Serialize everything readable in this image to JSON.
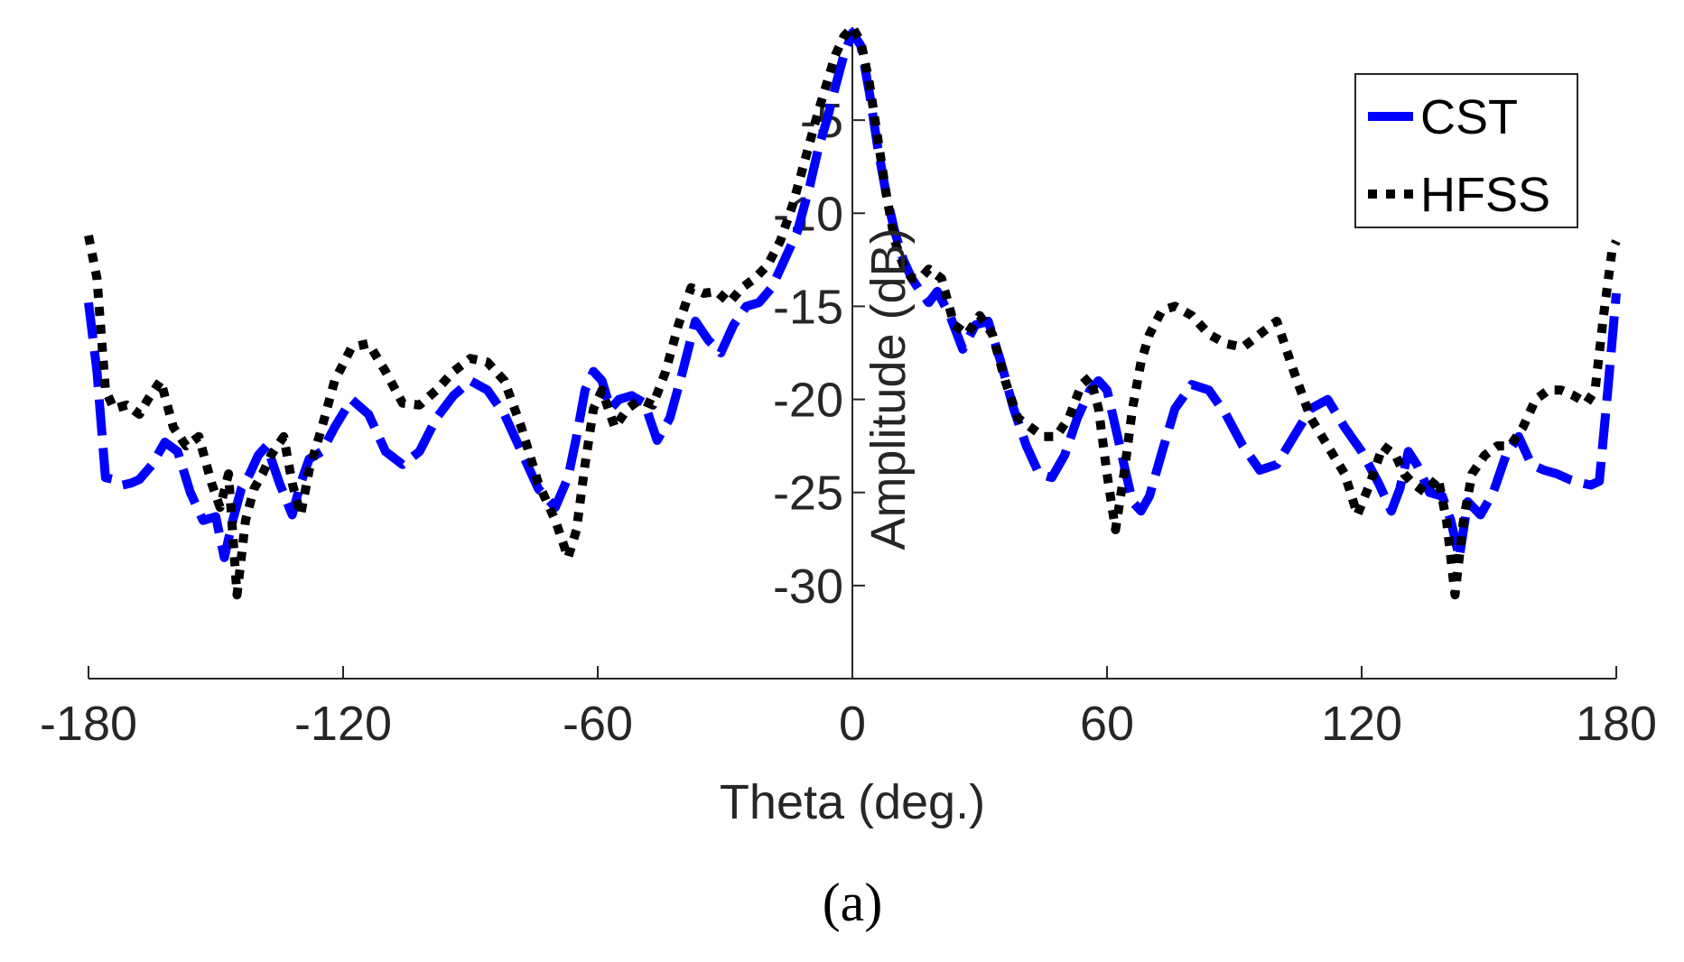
{
  "chart_data": {
    "type": "line",
    "title": "",
    "xlabel": "Theta (deg.)",
    "ylabel": "Amplitude (dB)",
    "xlim": [
      -180,
      180
    ],
    "ylim": [
      -35,
      0
    ],
    "xticks": [
      -180,
      -120,
      -60,
      0,
      60,
      120,
      180
    ],
    "yticks": [
      -30,
      -25,
      -20,
      -15,
      -10,
      -5
    ],
    "xtick_labels": [
      "-180",
      "-120",
      "-60",
      "0",
      "60",
      "120",
      "180"
    ],
    "ytick_labels": [
      "-30",
      "-25",
      "-20",
      "-15",
      "-10",
      "-5"
    ],
    "grid": false,
    "legend_position": "top-right",
    "panel_label": "(a)",
    "series": [
      {
        "name": "CST",
        "color": "#0000ff",
        "style": "dashed",
        "x": [
          -180,
          -178,
          -176,
          -174,
          -172,
          -170,
          -168,
          -165,
          -162,
          -159,
          -156,
          -153,
          -150,
          -148,
          -146,
          -144,
          -142,
          -140,
          -138,
          -135,
          -132,
          -130,
          -128,
          -125,
          -122,
          -118,
          -114,
          -110,
          -106,
          -102,
          -98,
          -94,
          -90,
          -86,
          -82,
          -78,
          -74,
          -70,
          -67,
          -65,
          -63,
          -61,
          -59,
          -57,
          -55,
          -52,
          -49,
          -46,
          -43,
          -40,
          -37,
          -34,
          -31,
          -28,
          -25,
          -22,
          -19,
          -16,
          -13,
          -10,
          -8,
          -6,
          -4,
          -2,
          0,
          2,
          4,
          6,
          8,
          10,
          12,
          14,
          16,
          18,
          20,
          23,
          26,
          29,
          32,
          35,
          38,
          41,
          44,
          47,
          50,
          53,
          56,
          58,
          60,
          62,
          64,
          66,
          68,
          70,
          73,
          76,
          80,
          84,
          88,
          92,
          96,
          100,
          104,
          108,
          112,
          116,
          120,
          124,
          127,
          129,
          131,
          133,
          136,
          139,
          141,
          143,
          145,
          148,
          151,
          154,
          157,
          160,
          163,
          166,
          169,
          172,
          174,
          176,
          178,
          180
        ],
        "y": [
          -14.8,
          -18.5,
          -24.2,
          -24.3,
          -24.6,
          -24.5,
          -24.3,
          -23.5,
          -22.3,
          -22.8,
          -25.0,
          -26.5,
          -26.3,
          -28.5,
          -26.5,
          -24.8,
          -24.0,
          -23.0,
          -22.5,
          -24.5,
          -26.2,
          -24.5,
          -23.2,
          -22.8,
          -21.5,
          -20.0,
          -20.8,
          -22.8,
          -23.5,
          -22.8,
          -21.0,
          -19.8,
          -19.0,
          -19.5,
          -20.8,
          -22.8,
          -24.8,
          -25.8,
          -24.2,
          -22.0,
          -19.5,
          -18.5,
          -19.0,
          -20.5,
          -20.0,
          -19.8,
          -20.2,
          -22.2,
          -21.0,
          -18.5,
          -15.8,
          -16.8,
          -17.5,
          -16.0,
          -15.0,
          -14.8,
          -14.0,
          -12.5,
          -11.0,
          -8.5,
          -6.5,
          -5.0,
          -3.2,
          -1.5,
          -0.3,
          -1.0,
          -3.5,
          -6.5,
          -9.0,
          -11.0,
          -12.5,
          -13.5,
          -14.2,
          -14.8,
          -14.2,
          -15.5,
          -17.3,
          -16.0,
          -15.8,
          -18.0,
          -20.5,
          -22.5,
          -24.0,
          -24.2,
          -23.0,
          -21.0,
          -19.5,
          -19.0,
          -19.5,
          -21.5,
          -23.5,
          -25.5,
          -26.0,
          -25.2,
          -22.8,
          -20.5,
          -19.2,
          -19.5,
          -20.8,
          -22.5,
          -23.8,
          -23.5,
          -22.0,
          -20.5,
          -20.0,
          -21.5,
          -22.8,
          -24.5,
          -26.0,
          -24.8,
          -22.8,
          -23.5,
          -25.0,
          -25.2,
          -26.5,
          -28.5,
          -25.5,
          -26.2,
          -25.0,
          -23.0,
          -22.0,
          -23.5,
          -23.8,
          -24.0,
          -24.3,
          -24.5,
          -24.6,
          -24.4,
          -19.5,
          -14.3
        ]
      },
      {
        "name": "HFSS",
        "color": "#000000",
        "style": "dotted",
        "x": [
          -180,
          -178,
          -176,
          -174,
          -171,
          -168,
          -166,
          -163,
          -160,
          -157,
          -154,
          -151,
          -149,
          -147,
          -145,
          -143,
          -141,
          -139,
          -137,
          -134,
          -132,
          -130,
          -128,
          -125,
          -122,
          -118,
          -114,
          -110,
          -106,
          -102,
          -98,
          -94,
          -90,
          -86,
          -82,
          -78,
          -74,
          -70,
          -67,
          -65,
          -63,
          -61,
          -59,
          -56,
          -53,
          -50,
          -47,
          -44,
          -41,
          -38,
          -35,
          -32,
          -29,
          -26,
          -23,
          -20,
          -17,
          -14,
          -11,
          -8,
          -6,
          -4,
          -2,
          0,
          2,
          4,
          6,
          8,
          10,
          12,
          14,
          16,
          18,
          21,
          24,
          27,
          30,
          33,
          36,
          39,
          42,
          45,
          48,
          51,
          54,
          56,
          58,
          60,
          62,
          64,
          66,
          68,
          70,
          73,
          76,
          80,
          84,
          88,
          92,
          96,
          100,
          104,
          108,
          112,
          116,
          119,
          122,
          125,
          128,
          130,
          132,
          135,
          138,
          140,
          142,
          144,
          146,
          149,
          152,
          155,
          158,
          161,
          164,
          167,
          170,
          173,
          175,
          177,
          179,
          180
        ],
        "y": [
          -11.2,
          -13.5,
          -19.5,
          -20.5,
          -20.3,
          -20.8,
          -20.0,
          -19.0,
          -21.5,
          -22.5,
          -22.0,
          -24.5,
          -25.8,
          -24.0,
          -30.5,
          -26.5,
          -24.8,
          -24.0,
          -23.0,
          -22.0,
          -24.5,
          -26.2,
          -23.8,
          -21.5,
          -19.0,
          -17.2,
          -17.0,
          -18.5,
          -20.2,
          -20.3,
          -19.5,
          -18.5,
          -17.8,
          -18.0,
          -19.0,
          -21.5,
          -24.5,
          -26.5,
          -28.5,
          -27.0,
          -23.5,
          -20.5,
          -19.5,
          -21.5,
          -20.5,
          -20.0,
          -20.3,
          -18.5,
          -16.0,
          -14.0,
          -14.3,
          -14.2,
          -14.8,
          -14.0,
          -13.5,
          -12.8,
          -11.5,
          -9.5,
          -7.0,
          -4.5,
          -3.0,
          -1.5,
          -0.5,
          0.0,
          -0.8,
          -3.0,
          -6.0,
          -9.0,
          -11.5,
          -12.8,
          -13.5,
          -13.5,
          -13.0,
          -13.5,
          -16.0,
          -16.5,
          -15.5,
          -16.5,
          -19.0,
          -21.0,
          -21.5,
          -22.0,
          -22.0,
          -21.0,
          -19.2,
          -18.8,
          -20.5,
          -24.0,
          -27.0,
          -24.0,
          -20.5,
          -18.0,
          -16.5,
          -15.2,
          -15.0,
          -15.5,
          -16.5,
          -17.0,
          -17.2,
          -16.5,
          -15.8,
          -18.5,
          -21.0,
          -22.5,
          -24.0,
          -26.2,
          -24.5,
          -22.5,
          -23.0,
          -24.0,
          -24.5,
          -25.0,
          -24.2,
          -26.5,
          -30.5,
          -26.5,
          -24.0,
          -23.0,
          -22.5,
          -22.5,
          -21.5,
          -20.0,
          -19.5,
          -19.5,
          -19.8,
          -20.2,
          -19.5,
          -15.5,
          -12.0,
          -11.5
        ]
      }
    ]
  }
}
